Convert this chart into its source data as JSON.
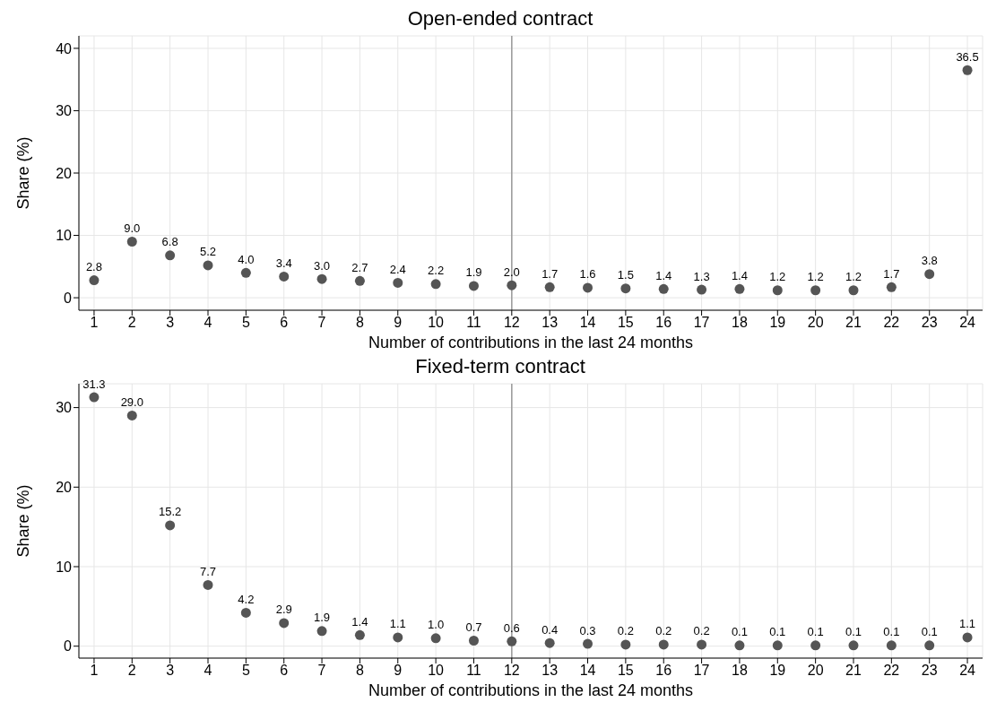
{
  "chart_data": [
    {
      "type": "scatter",
      "title": "Open-ended contract",
      "xlabel": "Number of contributions in the last 24 months",
      "ylabel": "Share (%)",
      "x": [
        1,
        2,
        3,
        4,
        5,
        6,
        7,
        8,
        9,
        10,
        11,
        12,
        13,
        14,
        15,
        16,
        17,
        18,
        19,
        20,
        21,
        22,
        23,
        24
      ],
      "series": [
        {
          "color": "#555555",
          "values": [
            2.8,
            9.0,
            6.8,
            5.2,
            4.0,
            3.4,
            3.0,
            2.7,
            2.4,
            2.2,
            1.9,
            2.0,
            1.7,
            1.6,
            1.5,
            1.4,
            1.3,
            1.4,
            1.2,
            1.2,
            1.2,
            1.7,
            3.8,
            36.5
          ],
          "value_labels": [
            "2.8",
            "9.0",
            "6.8",
            "5.2",
            "4.0",
            "3.4",
            "3.0",
            "2.7",
            "2.4",
            "2.2",
            "1.9",
            "2.0",
            "1.7",
            "1.6",
            "1.5",
            "1.4",
            "1.3",
            "1.4",
            "1.2",
            "1.2",
            "1.2",
            "1.7",
            "3.8",
            "36.5"
          ]
        }
      ],
      "xlim": [
        0.6,
        24.4
      ],
      "xticks": [
        1,
        2,
        3,
        4,
        5,
        6,
        7,
        8,
        9,
        10,
        11,
        12,
        13,
        14,
        15,
        16,
        17,
        18,
        19,
        20,
        21,
        22,
        23,
        24
      ],
      "ylim": [
        -2,
        42
      ],
      "yticks": [
        0,
        10,
        20,
        30,
        40
      ],
      "grid": true,
      "legend": false,
      "marker": "circle",
      "ref_lines": [
        {
          "axis": "x",
          "value": 12,
          "color": "#999999"
        }
      ]
    },
    {
      "type": "scatter",
      "title": "Fixed-term contract",
      "xlabel": "Number of contributions in the last 24 months",
      "ylabel": "Share (%)",
      "x": [
        1,
        2,
        3,
        4,
        5,
        6,
        7,
        8,
        9,
        10,
        11,
        12,
        13,
        14,
        15,
        16,
        17,
        18,
        19,
        20,
        21,
        22,
        23,
        24
      ],
      "series": [
        {
          "color": "#555555",
          "values": [
            31.3,
            29.0,
            15.2,
            7.7,
            4.2,
            2.9,
            1.9,
            1.4,
            1.1,
            1.0,
            0.7,
            0.6,
            0.4,
            0.3,
            0.2,
            0.2,
            0.2,
            0.1,
            0.1,
            0.1,
            0.1,
            0.1,
            0.1,
            1.1
          ],
          "value_labels": [
            "31.3",
            "29.0",
            "15.2",
            "7.7",
            "4.2",
            "2.9",
            "1.9",
            "1.4",
            "1.1",
            "1.0",
            "0.7",
            "0.6",
            "0.4",
            "0.3",
            "0.2",
            "0.2",
            "0.2",
            "0.1",
            "0.1",
            "0.1",
            "0.1",
            "0.1",
            "0.1",
            "1.1"
          ]
        }
      ],
      "xlim": [
        0.6,
        24.4
      ],
      "xticks": [
        1,
        2,
        3,
        4,
        5,
        6,
        7,
        8,
        9,
        10,
        11,
        12,
        13,
        14,
        15,
        16,
        17,
        18,
        19,
        20,
        21,
        22,
        23,
        24
      ],
      "ylim": [
        -1.5,
        33
      ],
      "yticks": [
        0,
        10,
        20,
        30
      ],
      "grid": true,
      "legend": false,
      "marker": "circle",
      "ref_lines": [
        {
          "axis": "x",
          "value": 12,
          "color": "#999999"
        }
      ]
    }
  ]
}
